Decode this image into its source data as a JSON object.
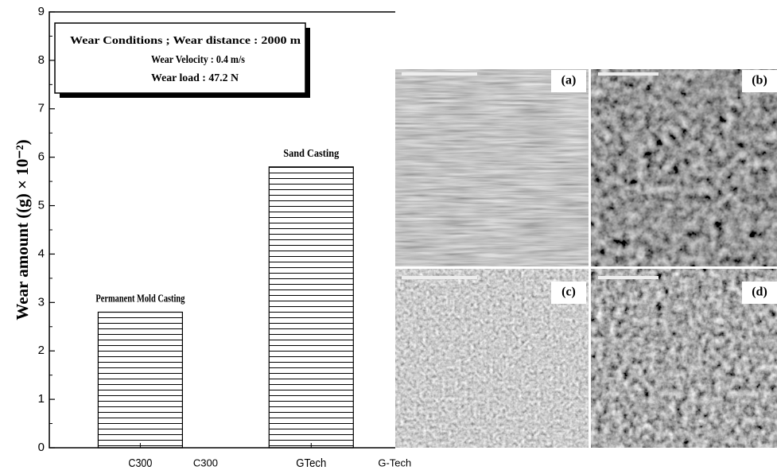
{
  "chart_data": {
    "type": "bar",
    "ylabel": "Wear amount ((g) × 10⁻²)",
    "categories": [
      "C300",
      "GTech"
    ],
    "secondary_labels": [
      "C300",
      "G-Tech"
    ],
    "values": [
      2.8,
      5.8
    ],
    "bar_labels": [
      "Permanent Mold Casting",
      "Sand Casting"
    ],
    "color": "#000000",
    "ylim": [
      0,
      9
    ],
    "yticks": [
      0,
      1,
      2,
      3,
      4,
      5,
      6,
      7,
      8,
      9
    ],
    "conditions": [
      "Wear Conditions ; Wear distance : 2000 m",
      "Wear Velocity : 0.4 m/s",
      "Wear load : 47.2 N"
    ],
    "micrographs": [
      "(a)",
      "(b)",
      "(c)",
      "(d)"
    ]
  }
}
